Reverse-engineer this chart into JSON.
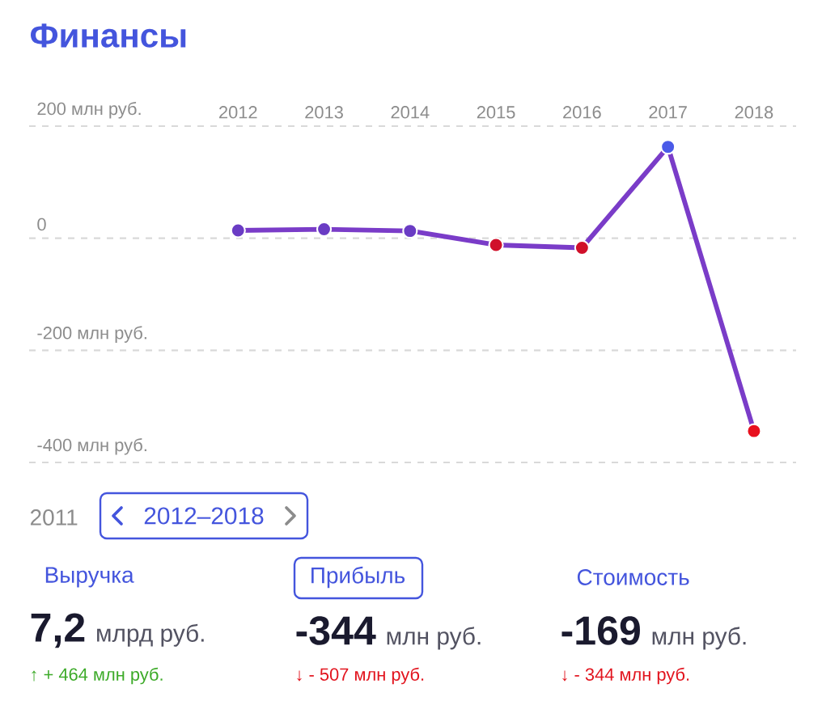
{
  "chart_data": {
    "type": "line",
    "title": "Финансы",
    "categories": [
      "2012",
      "2013",
      "2014",
      "2015",
      "2016",
      "2017",
      "2018"
    ],
    "series": [
      {
        "color": "#7a3cc8",
        "colors": [
          "#6a3cc4",
          "#6a3cc4",
          "#6a3cc4",
          "#d0102a",
          "#d0102a",
          "#4a5ae8",
          "#e8101e"
        ],
        "values": [
          14,
          16,
          13,
          -12,
          -17,
          163,
          -344
        ]
      }
    ],
    "ylim": [
      -400,
      200
    ],
    "yticks": [
      {
        "value": -400,
        "label": "-400 млн руб."
      },
      {
        "value": -200,
        "label": "-200 млн руб."
      },
      0,
      {
        "value": 200,
        "label": "200 млн руб."
      }
    ],
    "grid": "y",
    "marker": "circle",
    "line_style": "solid",
    "annotations": [
      "2011",
      "2012–2018",
      "Выручка",
      "Прибыль",
      "Стоимость",
      "7,2",
      "млрд руб.",
      "-344",
      "млн руб.",
      "-169",
      "млн руб.",
      "↑ + 464 млн руб.",
      "↓ - 507 млн руб.",
      "↓ - 344 млн руб."
    ]
  }
}
